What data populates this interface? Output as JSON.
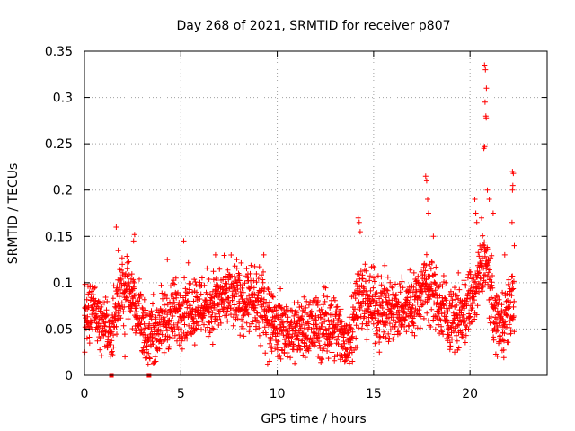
{
  "chart_data": {
    "type": "scatter",
    "title": "Day 268 of 2021, SRMTID for receiver p807",
    "xlabel": "GPS time / hours",
    "ylabel": "SRMTID / TECUs",
    "xlim": [
      0,
      24
    ],
    "ylim": [
      0,
      0.35
    ],
    "x_ticks": [
      0,
      5,
      10,
      15,
      20
    ],
    "x_tick_labels": [
      "0",
      "5",
      "10",
      "15",
      "20"
    ],
    "y_ticks": [
      0,
      0.05,
      0.1,
      0.15,
      0.2,
      0.25,
      0.3,
      0.35
    ],
    "y_tick_labels": [
      "0",
      "0.05",
      "0.1",
      "0.15",
      "0.2",
      "0.25",
      "0.3",
      "0.35"
    ],
    "grid": true,
    "marker": "+",
    "series_color": "#ff0000",
    "trend": [
      {
        "x": 0.0,
        "y": 0.065
      },
      {
        "x": 0.5,
        "y": 0.07
      },
      {
        "x": 1.0,
        "y": 0.058
      },
      {
        "x": 1.4,
        "y": 0.04
      },
      {
        "x": 1.8,
        "y": 0.085
      },
      {
        "x": 2.3,
        "y": 0.095
      },
      {
        "x": 2.8,
        "y": 0.07
      },
      {
        "x": 3.3,
        "y": 0.04
      },
      {
        "x": 3.8,
        "y": 0.05
      },
      {
        "x": 4.5,
        "y": 0.065
      },
      {
        "x": 5.5,
        "y": 0.075
      },
      {
        "x": 6.5,
        "y": 0.075
      },
      {
        "x": 7.5,
        "y": 0.085
      },
      {
        "x": 8.5,
        "y": 0.08
      },
      {
        "x": 9.5,
        "y": 0.07
      },
      {
        "x": 10.0,
        "y": 0.05
      },
      {
        "x": 11.0,
        "y": 0.05
      },
      {
        "x": 12.0,
        "y": 0.052
      },
      {
        "x": 13.0,
        "y": 0.055
      },
      {
        "x": 13.6,
        "y": 0.035
      },
      {
        "x": 14.2,
        "y": 0.085
      },
      {
        "x": 15.0,
        "y": 0.075
      },
      {
        "x": 16.0,
        "y": 0.07
      },
      {
        "x": 17.0,
        "y": 0.075
      },
      {
        "x": 17.8,
        "y": 0.1
      },
      {
        "x": 18.4,
        "y": 0.075
      },
      {
        "x": 19.0,
        "y": 0.06
      },
      {
        "x": 19.6,
        "y": 0.065
      },
      {
        "x": 20.3,
        "y": 0.09
      },
      {
        "x": 20.8,
        "y": 0.13
      },
      {
        "x": 21.3,
        "y": 0.06
      },
      {
        "x": 21.8,
        "y": 0.06
      },
      {
        "x": 22.2,
        "y": 0.08
      }
    ],
    "spikes": [
      {
        "x": 0.55,
        "y": 0.095
      },
      {
        "x": 1.65,
        "y": 0.16
      },
      {
        "x": 1.75,
        "y": 0.135
      },
      {
        "x": 2.6,
        "y": 0.152
      },
      {
        "x": 2.55,
        "y": 0.145
      },
      {
        "x": 4.3,
        "y": 0.125
      },
      {
        "x": 5.15,
        "y": 0.145
      },
      {
        "x": 6.8,
        "y": 0.13
      },
      {
        "x": 7.9,
        "y": 0.125
      },
      {
        "x": 9.3,
        "y": 0.13
      },
      {
        "x": 14.2,
        "y": 0.17
      },
      {
        "x": 14.25,
        "y": 0.165
      },
      {
        "x": 14.3,
        "y": 0.155
      },
      {
        "x": 17.7,
        "y": 0.215
      },
      {
        "x": 17.75,
        "y": 0.21
      },
      {
        "x": 17.8,
        "y": 0.19
      },
      {
        "x": 17.85,
        "y": 0.175
      },
      {
        "x": 18.1,
        "y": 0.15
      },
      {
        "x": 20.25,
        "y": 0.19
      },
      {
        "x": 20.3,
        "y": 0.175
      },
      {
        "x": 20.35,
        "y": 0.165
      },
      {
        "x": 20.75,
        "y": 0.335
      },
      {
        "x": 20.8,
        "y": 0.33
      },
      {
        "x": 20.85,
        "y": 0.31
      },
      {
        "x": 20.78,
        "y": 0.295
      },
      {
        "x": 20.82,
        "y": 0.28
      },
      {
        "x": 20.84,
        "y": 0.278
      },
      {
        "x": 20.72,
        "y": 0.245
      },
      {
        "x": 20.76,
        "y": 0.247
      },
      {
        "x": 20.9,
        "y": 0.2
      },
      {
        "x": 21.0,
        "y": 0.19
      },
      {
        "x": 21.2,
        "y": 0.175
      },
      {
        "x": 20.6,
        "y": 0.17
      },
      {
        "x": 22.2,
        "y": 0.22
      },
      {
        "x": 22.25,
        "y": 0.218
      },
      {
        "x": 22.22,
        "y": 0.205
      },
      {
        "x": 22.2,
        "y": 0.2
      },
      {
        "x": 22.18,
        "y": 0.165
      },
      {
        "x": 22.3,
        "y": 0.14
      },
      {
        "x": 21.8,
        "y": 0.13
      },
      {
        "x": 1.4,
        "y": 0.025
      },
      {
        "x": 2.1,
        "y": 0.02
      },
      {
        "x": 3.3,
        "y": 0.012
      },
      {
        "x": 3.7,
        "y": 0.015
      },
      {
        "x": 13.5,
        "y": 0.015
      },
      {
        "x": 13.9,
        "y": 0.015
      },
      {
        "x": 15.3,
        "y": 0.025
      },
      {
        "x": 19.2,
        "y": 0.025
      },
      {
        "x": 9.5,
        "y": 0.012
      },
      {
        "x": 9.6,
        "y": 0.015
      },
      {
        "x": 0.02,
        "y": 0.025
      }
    ],
    "zero_points": [
      {
        "x": 1.4,
        "y": 0
      },
      {
        "x": 3.35,
        "y": 0
      }
    ],
    "data_end_hour": 22.3,
    "noise_amplitude": 0.022,
    "points_per_hour": 100
  }
}
